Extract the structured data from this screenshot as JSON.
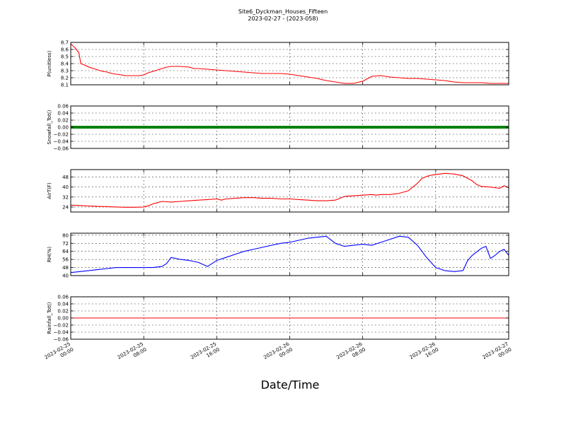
{
  "figure": {
    "title_line1": "Site6_Dyckman_Houses_Fifteen",
    "title_line2": "2023-02-27 - (2023-058)",
    "xlabel": "Date/Time",
    "x_tick_labels": [
      {
        "line1": "2023-02-25",
        "line2": "00:00"
      },
      {
        "line1": "2023-02-25",
        "line2": "08:00"
      },
      {
        "line1": "2023-02-25",
        "line2": "16:00"
      },
      {
        "line1": "2023-02-26",
        "line2": "00:00"
      },
      {
        "line1": "2023-02-26",
        "line2": "08:00"
      },
      {
        "line1": "2023-02-26",
        "line2": "16:00"
      },
      {
        "line1": "2023-02-27",
        "line2": "00:00"
      }
    ]
  },
  "chart_data": [
    {
      "type": "line",
      "ylabel": "P(unitless)",
      "xlim_hours": [
        0,
        48
      ],
      "ylim": [
        8.1,
        8.7
      ],
      "yticks": [
        8.1,
        8.2,
        8.3,
        8.4,
        8.5,
        8.6,
        8.7
      ],
      "ytick_labels": [
        "8.1",
        "8.2",
        "8.3",
        "8.4",
        "8.5",
        "8.6",
        "8.7"
      ],
      "grid": true,
      "series": [
        {
          "color": "#ff0000",
          "points": [
            [
              0,
              8.68
            ],
            [
              0.5,
              8.62
            ],
            [
              0.9,
              8.55
            ],
            [
              1.1,
              8.4
            ],
            [
              1.5,
              8.38
            ],
            [
              2.0,
              8.35
            ],
            [
              2.5,
              8.33
            ],
            [
              3.0,
              8.31
            ],
            [
              3.5,
              8.29
            ],
            [
              4.0,
              8.28
            ],
            [
              4.5,
              8.26
            ],
            [
              5.0,
              8.25
            ],
            [
              5.5,
              8.24
            ],
            [
              6.0,
              8.23
            ],
            [
              6.5,
              8.23
            ],
            [
              7.0,
              8.23
            ],
            [
              7.5,
              8.23
            ],
            [
              8.0,
              8.24
            ],
            [
              8.5,
              8.27
            ],
            [
              9.0,
              8.29
            ],
            [
              9.5,
              8.31
            ],
            [
              10.0,
              8.33
            ],
            [
              10.5,
              8.35
            ],
            [
              11.0,
              8.36
            ],
            [
              11.5,
              8.36
            ],
            [
              12.0,
              8.36
            ],
            [
              13.0,
              8.35
            ],
            [
              13.5,
              8.33
            ],
            [
              14.0,
              8.33
            ],
            [
              15.0,
              8.32
            ],
            [
              16.0,
              8.31
            ],
            [
              17.0,
              8.3
            ],
            [
              18.0,
              8.29
            ],
            [
              19.0,
              8.28
            ],
            [
              20.0,
              8.27
            ],
            [
              21.0,
              8.26
            ],
            [
              22.0,
              8.26
            ],
            [
              23.0,
              8.26
            ],
            [
              24.0,
              8.25
            ],
            [
              25.0,
              8.23
            ],
            [
              26.0,
              8.21
            ],
            [
              27.0,
              8.19
            ],
            [
              28.0,
              8.16
            ],
            [
              29.0,
              8.14
            ],
            [
              30.0,
              8.12
            ],
            [
              31.0,
              8.12
            ],
            [
              32.0,
              8.15
            ],
            [
              33.0,
              8.22
            ],
            [
              34.0,
              8.23
            ],
            [
              35.0,
              8.21
            ],
            [
              36.0,
              8.2
            ],
            [
              37.0,
              8.19
            ],
            [
              38.0,
              8.19
            ],
            [
              39.0,
              8.18
            ],
            [
              40.0,
              8.17
            ],
            [
              41.0,
              8.16
            ],
            [
              42.0,
              8.14
            ],
            [
              43.0,
              8.13
            ],
            [
              44.0,
              8.13
            ],
            [
              45.0,
              8.13
            ],
            [
              46.0,
              8.12
            ],
            [
              47.0,
              8.12
            ],
            [
              48.0,
              8.12
            ]
          ]
        }
      ]
    },
    {
      "type": "line",
      "ylabel": "Snowfall_Tot()",
      "xlim_hours": [
        0,
        48
      ],
      "ylim": [
        -0.06,
        0.06
      ],
      "yticks": [
        -0.06,
        -0.04,
        -0.02,
        0.0,
        0.02,
        0.04,
        0.06
      ],
      "ytick_labels": [
        "−0.06",
        "−0.04",
        "−0.02",
        "0.00",
        "0.02",
        "0.04",
        "0.06"
      ],
      "grid": true,
      "series": [
        {
          "color": "#008000",
          "linewidth": 4,
          "points": [
            [
              0,
              0
            ],
            [
              48,
              0
            ]
          ]
        }
      ]
    },
    {
      "type": "line",
      "ylabel": "AirT(F)",
      "xlim_hours": [
        0,
        48
      ],
      "ylim": [
        20,
        54
      ],
      "yticks": [
        24,
        32,
        40,
        48
      ],
      "ytick_labels": [
        "24",
        "32",
        "40",
        "48"
      ],
      "grid": true,
      "series": [
        {
          "color": "#ff0000",
          "points": [
            [
              0,
              25.5
            ],
            [
              1,
              25.2
            ],
            [
              2,
              24.8
            ],
            [
              3,
              24.5
            ],
            [
              4,
              24.3
            ],
            [
              5,
              24.0
            ],
            [
              6,
              23.8
            ],
            [
              7,
              23.8
            ],
            [
              8,
              24.0
            ],
            [
              8.5,
              25.0
            ],
            [
              9,
              26.5
            ],
            [
              9.5,
              27.5
            ],
            [
              10,
              28.5
            ],
            [
              11,
              28.0
            ],
            [
              12,
              28.5
            ],
            [
              13,
              29.0
            ],
            [
              14,
              29.5
            ],
            [
              15,
              30.0
            ],
            [
              16,
              30.5
            ],
            [
              16.5,
              29.5
            ],
            [
              17,
              30.5
            ],
            [
              18,
              31.0
            ],
            [
              19,
              31.5
            ],
            [
              20,
              31.5
            ],
            [
              21,
              31.0
            ],
            [
              22,
              31.0
            ],
            [
              23,
              30.5
            ],
            [
              24,
              30.5
            ],
            [
              25,
              30.0
            ],
            [
              26,
              29.5
            ],
            [
              27,
              29.0
            ],
            [
              28,
              29.0
            ],
            [
              29,
              29.5
            ],
            [
              29.5,
              31.0
            ],
            [
              30,
              32.5
            ],
            [
              31,
              33.0
            ],
            [
              32,
              33.5
            ],
            [
              33,
              34.0
            ],
            [
              33.5,
              33.5
            ],
            [
              34,
              34.0
            ],
            [
              35,
              34.0
            ],
            [
              36,
              35.0
            ],
            [
              37,
              37.0
            ],
            [
              38,
              43.0
            ],
            [
              38.5,
              47.0
            ],
            [
              39,
              48.5
            ],
            [
              39.5,
              49.5
            ],
            [
              40,
              50.0
            ],
            [
              41,
              51.0
            ],
            [
              42,
              50.5
            ],
            [
              43,
              49.0
            ],
            [
              43.5,
              47.0
            ],
            [
              44,
              45.0
            ],
            [
              44.5,
              42.0
            ],
            [
              45,
              40.5
            ],
            [
              46,
              40.0
            ],
            [
              47,
              39.0
            ],
            [
              47.5,
              41.0
            ],
            [
              48,
              39.5
            ]
          ]
        }
      ]
    },
    {
      "type": "line",
      "ylabel": "RH(%)",
      "xlim_hours": [
        0,
        48
      ],
      "ylim": [
        40,
        82
      ],
      "yticks": [
        40,
        48,
        56,
        64,
        72,
        80
      ],
      "ytick_labels": [
        "40",
        "48",
        "56",
        "64",
        "72",
        "80"
      ],
      "grid": true,
      "series": [
        {
          "color": "#0000ff",
          "points": [
            [
              0,
              43
            ],
            [
              1,
              44
            ],
            [
              2,
              45
            ],
            [
              3,
              46
            ],
            [
              4,
              47
            ],
            [
              5,
              48
            ],
            [
              6,
              48
            ],
            [
              7,
              48
            ],
            [
              8,
              48
            ],
            [
              9,
              48
            ],
            [
              10,
              49
            ],
            [
              10.5,
              52
            ],
            [
              11,
              58
            ],
            [
              12,
              56
            ],
            [
              13,
              55
            ],
            [
              14,
              53
            ],
            [
              15,
              49
            ],
            [
              16,
              55
            ],
            [
              17,
              58
            ],
            [
              18,
              61
            ],
            [
              19,
              64
            ],
            [
              20,
              66
            ],
            [
              21,
              68
            ],
            [
              22,
              70
            ],
            [
              23,
              72
            ],
            [
              24,
              73
            ],
            [
              25,
              75
            ],
            [
              26,
              77
            ],
            [
              27,
              78
            ],
            [
              28,
              79
            ],
            [
              29,
              72
            ],
            [
              30,
              69
            ],
            [
              31,
              70
            ],
            [
              32,
              71
            ],
            [
              33,
              70
            ],
            [
              34,
              73
            ],
            [
              35,
              76
            ],
            [
              36,
              79
            ],
            [
              37,
              78
            ],
            [
              38,
              70
            ],
            [
              39,
              58
            ],
            [
              40,
              48
            ],
            [
              41,
              45
            ],
            [
              42,
              44
            ],
            [
              43,
              45
            ],
            [
              43.5,
              55
            ],
            [
              44,
              60
            ],
            [
              45,
              67
            ],
            [
              45.5,
              69
            ],
            [
              46,
              57
            ],
            [
              46.5,
              60
            ],
            [
              47,
              64
            ],
            [
              47.5,
              66
            ],
            [
              48,
              60
            ]
          ]
        }
      ]
    },
    {
      "type": "line",
      "ylabel": "Rainfall_Tot()",
      "xlim_hours": [
        0,
        48
      ],
      "ylim": [
        -0.06,
        0.06
      ],
      "yticks": [
        -0.06,
        -0.04,
        -0.02,
        0.0,
        0.02,
        0.04,
        0.06
      ],
      "ytick_labels": [
        "−0.06",
        "−0.04",
        "−0.02",
        "0.00",
        "0.02",
        "0.04",
        "0.06"
      ],
      "grid": true,
      "series": [
        {
          "color": "#ff0000",
          "points": [
            [
              0,
              0
            ],
            [
              48,
              0
            ]
          ]
        }
      ]
    }
  ]
}
